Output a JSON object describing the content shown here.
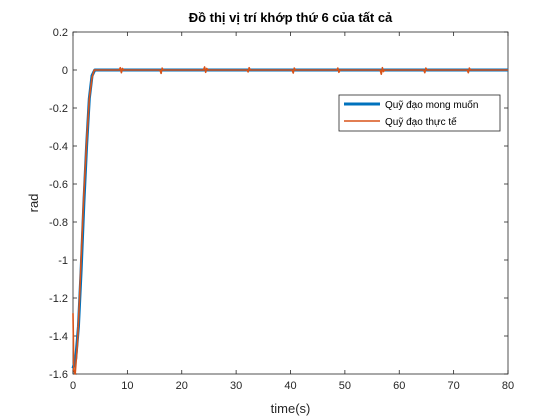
{
  "chart_data": {
    "type": "line",
    "title": "Đồ thị vị trí khớp thứ 6 của tất cả",
    "xlabel": "time(s)",
    "ylabel": "rad",
    "xlim": [
      0,
      80
    ],
    "ylim": [
      -1.6,
      0.2
    ],
    "xticks": [
      "0",
      "10",
      "20",
      "30",
      "40",
      "50",
      "60",
      "70",
      "80"
    ],
    "yticks": [
      "0.2",
      "0",
      "-0.2",
      "-0.4",
      "-0.6",
      "-0.8",
      "-1",
      "-1.2",
      "-1.4",
      "-1.6"
    ],
    "grid": false,
    "legend_position": "top-right",
    "series": [
      {
        "name": "Quỹ đạo mong muốn",
        "color": "#0072BD",
        "x": [
          0,
          0.5,
          1,
          1.5,
          2,
          2.5,
          3,
          3.5,
          4,
          80
        ],
        "y": [
          -1.57,
          -1.52,
          -1.35,
          -1.05,
          -0.7,
          -0.4,
          -0.15,
          -0.03,
          0,
          0
        ]
      },
      {
        "name": "Quỹ đạo thực tế",
        "color": "#D95319",
        "x": [
          0,
          0.15,
          0.4,
          0.8,
          1.2,
          1.6,
          2,
          2.5,
          3,
          3.5,
          3.9,
          4.2,
          8.5,
          8.7,
          8.9,
          9.1,
          9.3,
          16,
          16.2,
          16.4,
          16.6,
          24,
          24.2,
          24.4,
          24.6,
          24.8,
          32,
          32.2,
          32.4,
          32.6,
          40.3,
          40.5,
          40.7,
          40.9,
          48.5,
          48.7,
          48.9,
          49.1,
          56.5,
          56.7,
          56.9,
          57.1,
          57.3,
          64.5,
          64.7,
          64.9,
          65.1,
          72.5,
          72.7,
          72.9,
          73.1,
          80
        ],
        "y": [
          -1.28,
          -1.58,
          -1.6,
          -1.45,
          -1.2,
          -0.92,
          -0.65,
          -0.38,
          -0.15,
          -0.04,
          0,
          0,
          0,
          0.012,
          -0.014,
          0.008,
          0,
          0,
          -0.018,
          0.01,
          0,
          0,
          0.016,
          -0.012,
          0.008,
          0,
          0,
          -0.01,
          0.012,
          0,
          0,
          -0.016,
          0.01,
          0,
          0,
          0.01,
          -0.012,
          0,
          0,
          -0.022,
          0.012,
          -0.008,
          0,
          0,
          -0.014,
          0.01,
          0,
          0,
          -0.014,
          0.01,
          0,
          0
        ]
      }
    ]
  }
}
